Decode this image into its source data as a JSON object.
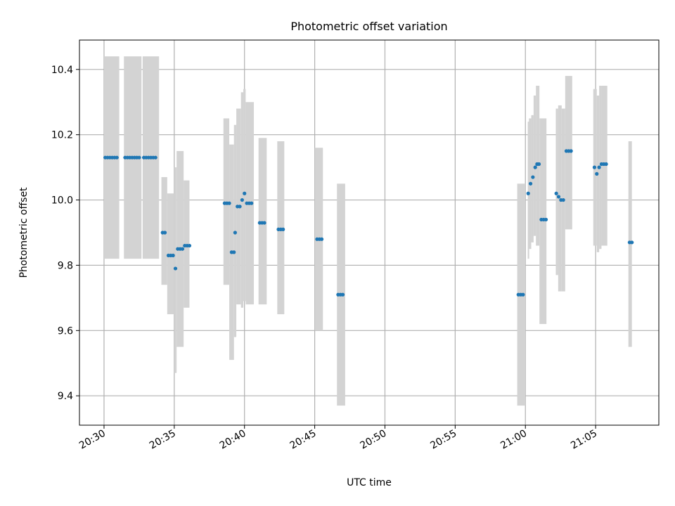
{
  "chart_data": {
    "type": "scatter",
    "title": "Photometric offset variation",
    "xlabel": "UTC time",
    "ylabel": "Photometric offset",
    "x_tick_labels": [
      "20:30",
      "20:35",
      "20:40",
      "20:45",
      "20:50",
      "20:55",
      "21:00",
      "21:05"
    ],
    "x_tick_values": [
      "20:30",
      "20:35",
      "20:40",
      "20:45",
      "20:50",
      "20:55",
      "21:00",
      "21:05"
    ],
    "xlim": [
      "20:28:15",
      "21:09:30"
    ],
    "y_tick_labels": [
      "9.4",
      "9.6",
      "9.8",
      "10.0",
      "10.2",
      "10.4"
    ],
    "y_tick_values": [
      9.4,
      9.6,
      9.8,
      10.0,
      10.2,
      10.4
    ],
    "ylim": [
      9.31,
      10.49
    ],
    "grid": true,
    "colors": {
      "points": "#1f77b4",
      "error_bars": "#d3d3d3",
      "grid": "#b0b0b0"
    },
    "error_bars": [
      {
        "x_start": "20:30:00",
        "x_end": "20:31:05",
        "low": 9.82,
        "high": 10.44
      },
      {
        "x_start": "20:31:25",
        "x_end": "20:32:40",
        "low": 9.82,
        "high": 10.44
      },
      {
        "x_start": "20:32:45",
        "x_end": "20:33:55",
        "low": 9.82,
        "high": 10.44
      },
      {
        "x_start": "20:34:05",
        "x_end": "20:34:30",
        "low": 9.74,
        "high": 10.07
      },
      {
        "x_start": "20:34:30",
        "x_end": "20:35:00",
        "low": 9.65,
        "high": 10.02
      },
      {
        "x_start": "20:35:00",
        "x_end": "20:35:10",
        "low": 9.47,
        "high": 10.1
      },
      {
        "x_start": "20:35:10",
        "x_end": "20:35:40",
        "low": 9.55,
        "high": 10.15
      },
      {
        "x_start": "20:35:40",
        "x_end": "20:36:05",
        "low": 9.67,
        "high": 10.06
      },
      {
        "x_start": "20:38:30",
        "x_end": "20:38:55",
        "low": 9.74,
        "high": 10.25
      },
      {
        "x_start": "20:38:55",
        "x_end": "20:39:15",
        "low": 9.51,
        "high": 10.17
      },
      {
        "x_start": "20:39:15",
        "x_end": "20:39:25",
        "low": 9.58,
        "high": 10.23
      },
      {
        "x_start": "20:39:25",
        "x_end": "20:39:45",
        "low": 9.68,
        "high": 10.28
      },
      {
        "x_start": "20:39:45",
        "x_end": "20:39:55",
        "low": 9.67,
        "high": 10.33
      },
      {
        "x_start": "20:39:55",
        "x_end": "20:40:05",
        "low": 9.69,
        "high": 10.34
      },
      {
        "x_start": "20:40:05",
        "x_end": "20:40:40",
        "low": 9.68,
        "high": 10.3
      },
      {
        "x_start": "20:41:00",
        "x_end": "20:41:35",
        "low": 9.68,
        "high": 10.19
      },
      {
        "x_start": "20:42:20",
        "x_end": "20:42:50",
        "low": 9.65,
        "high": 10.18
      },
      {
        "x_start": "20:45:00",
        "x_end": "20:45:35",
        "low": 9.6,
        "high": 10.16
      },
      {
        "x_start": "20:46:35",
        "x_end": "20:47:10",
        "low": 9.37,
        "high": 10.05
      },
      {
        "x_start": "20:59:25",
        "x_end": "21:00:00",
        "low": 9.37,
        "high": 10.05
      },
      {
        "x_start": "21:00:10",
        "x_end": "21:00:15",
        "low": 9.82,
        "high": 10.24
      },
      {
        "x_start": "21:00:15",
        "x_end": "21:00:25",
        "low": 9.85,
        "high": 10.25
      },
      {
        "x_start": "21:00:25",
        "x_end": "21:00:35",
        "low": 9.87,
        "high": 10.26
      },
      {
        "x_start": "21:00:35",
        "x_end": "21:00:45",
        "low": 9.89,
        "high": 10.32
      },
      {
        "x_start": "21:00:45",
        "x_end": "21:01:00",
        "low": 9.86,
        "high": 10.35
      },
      {
        "x_start": "21:01:00",
        "x_end": "21:01:30",
        "low": 9.62,
        "high": 10.25
      },
      {
        "x_start": "21:02:10",
        "x_end": "21:02:20",
        "low": 9.77,
        "high": 10.28
      },
      {
        "x_start": "21:02:20",
        "x_end": "21:02:35",
        "low": 9.72,
        "high": 10.29
      },
      {
        "x_start": "21:02:35",
        "x_end": "21:02:50",
        "low": 9.72,
        "high": 10.28
      },
      {
        "x_start": "21:02:50",
        "x_end": "21:03:20",
        "low": 9.91,
        "high": 10.38
      },
      {
        "x_start": "21:04:50",
        "x_end": "21:05:05",
        "low": 9.86,
        "high": 10.34
      },
      {
        "x_start": "21:05:05",
        "x_end": "21:05:15",
        "low": 9.84,
        "high": 10.32
      },
      {
        "x_start": "21:05:15",
        "x_end": "21:05:25",
        "low": 9.85,
        "high": 10.35
      },
      {
        "x_start": "21:05:25",
        "x_end": "21:05:50",
        "low": 9.86,
        "high": 10.35
      },
      {
        "x_start": "21:07:20",
        "x_end": "21:07:35",
        "low": 9.55,
        "high": 10.18
      }
    ],
    "points": [
      {
        "time": "20:30:05",
        "value": 10.13
      },
      {
        "time": "20:30:15",
        "value": 10.13
      },
      {
        "time": "20:30:25",
        "value": 10.13
      },
      {
        "time": "20:30:35",
        "value": 10.13
      },
      {
        "time": "20:30:45",
        "value": 10.13
      },
      {
        "time": "20:30:55",
        "value": 10.13
      },
      {
        "time": "20:31:30",
        "value": 10.13
      },
      {
        "time": "20:31:40",
        "value": 10.13
      },
      {
        "time": "20:31:50",
        "value": 10.13
      },
      {
        "time": "20:32:00",
        "value": 10.13
      },
      {
        "time": "20:32:10",
        "value": 10.13
      },
      {
        "time": "20:32:20",
        "value": 10.13
      },
      {
        "time": "20:32:30",
        "value": 10.13
      },
      {
        "time": "20:32:50",
        "value": 10.13
      },
      {
        "time": "20:33:00",
        "value": 10.13
      },
      {
        "time": "20:33:10",
        "value": 10.13
      },
      {
        "time": "20:33:20",
        "value": 10.13
      },
      {
        "time": "20:33:30",
        "value": 10.13
      },
      {
        "time": "20:33:40",
        "value": 10.13
      },
      {
        "time": "20:34:10",
        "value": 9.9
      },
      {
        "time": "20:34:20",
        "value": 9.9
      },
      {
        "time": "20:34:35",
        "value": 9.83
      },
      {
        "time": "20:34:45",
        "value": 9.83
      },
      {
        "time": "20:34:55",
        "value": 9.83
      },
      {
        "time": "20:35:05",
        "value": 9.79
      },
      {
        "time": "20:35:15",
        "value": 9.85
      },
      {
        "time": "20:35:25",
        "value": 9.85
      },
      {
        "time": "20:35:35",
        "value": 9.85
      },
      {
        "time": "20:35:45",
        "value": 9.86
      },
      {
        "time": "20:35:55",
        "value": 9.86
      },
      {
        "time": "20:36:05",
        "value": 9.86
      },
      {
        "time": "20:38:35",
        "value": 9.99
      },
      {
        "time": "20:38:45",
        "value": 9.99
      },
      {
        "time": "20:38:55",
        "value": 9.99
      },
      {
        "time": "20:39:05",
        "value": 9.84
      },
      {
        "time": "20:39:15",
        "value": 9.84
      },
      {
        "time": "20:39:20",
        "value": 9.9
      },
      {
        "time": "20:39:30",
        "value": 9.98
      },
      {
        "time": "20:39:40",
        "value": 9.98
      },
      {
        "time": "20:39:50",
        "value": 10.0
      },
      {
        "time": "20:40:00",
        "value": 10.02
      },
      {
        "time": "20:40:10",
        "value": 9.99
      },
      {
        "time": "20:40:20",
        "value": 9.99
      },
      {
        "time": "20:40:30",
        "value": 9.99
      },
      {
        "time": "20:41:05",
        "value": 9.93
      },
      {
        "time": "20:41:15",
        "value": 9.93
      },
      {
        "time": "20:41:25",
        "value": 9.93
      },
      {
        "time": "20:42:25",
        "value": 9.91
      },
      {
        "time": "20:42:35",
        "value": 9.91
      },
      {
        "time": "20:42:45",
        "value": 9.91
      },
      {
        "time": "20:45:10",
        "value": 9.88
      },
      {
        "time": "20:45:20",
        "value": 9.88
      },
      {
        "time": "20:45:30",
        "value": 9.88
      },
      {
        "time": "20:46:40",
        "value": 9.71
      },
      {
        "time": "20:46:50",
        "value": 9.71
      },
      {
        "time": "20:47:00",
        "value": 9.71
      },
      {
        "time": "20:59:30",
        "value": 9.71
      },
      {
        "time": "20:59:40",
        "value": 9.71
      },
      {
        "time": "20:59:50",
        "value": 9.71
      },
      {
        "time": "21:00:12",
        "value": 10.02
      },
      {
        "time": "21:00:22",
        "value": 10.05
      },
      {
        "time": "21:00:32",
        "value": 10.07
      },
      {
        "time": "21:00:42",
        "value": 10.1
      },
      {
        "time": "21:00:50",
        "value": 10.11
      },
      {
        "time": "21:00:58",
        "value": 10.11
      },
      {
        "time": "21:01:08",
        "value": 9.94
      },
      {
        "time": "21:01:18",
        "value": 9.94
      },
      {
        "time": "21:01:28",
        "value": 9.94
      },
      {
        "time": "21:02:12",
        "value": 10.02
      },
      {
        "time": "21:02:22",
        "value": 10.01
      },
      {
        "time": "21:02:32",
        "value": 10.0
      },
      {
        "time": "21:02:42",
        "value": 10.0
      },
      {
        "time": "21:02:55",
        "value": 10.15
      },
      {
        "time": "21:03:05",
        "value": 10.15
      },
      {
        "time": "21:03:15",
        "value": 10.15
      },
      {
        "time": "21:04:55",
        "value": 10.1
      },
      {
        "time": "21:05:05",
        "value": 10.08
      },
      {
        "time": "21:05:15",
        "value": 10.1
      },
      {
        "time": "21:05:25",
        "value": 10.11
      },
      {
        "time": "21:05:35",
        "value": 10.11
      },
      {
        "time": "21:05:45",
        "value": 10.11
      },
      {
        "time": "21:07:25",
        "value": 9.87
      },
      {
        "time": "21:07:35",
        "value": 9.87
      }
    ]
  }
}
